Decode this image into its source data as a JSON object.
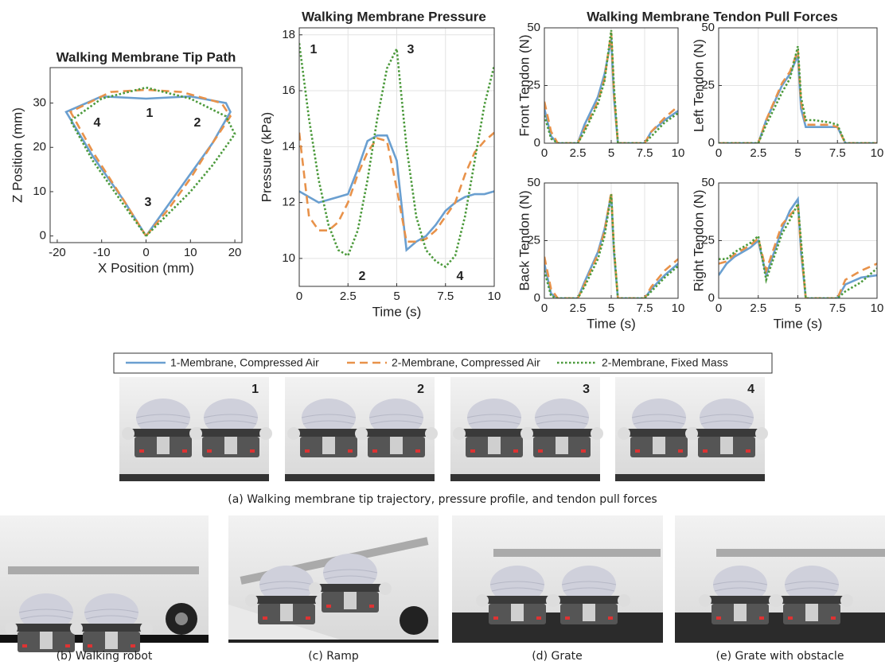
{
  "chart_data": [
    {
      "type": "line",
      "title": "Walking Membrane Tip Path",
      "xlabel": "X Position (mm)",
      "ylabel": "Z Position (mm)",
      "xlim": [
        -21.6,
        21.6
      ],
      "xticks": [
        -20,
        -10,
        0,
        10,
        20
      ],
      "ylim": [
        -1.5,
        38
      ],
      "yticks": [
        0,
        10,
        20,
        30
      ],
      "grid": false,
      "annotations": [
        "1",
        "2",
        "3",
        "4"
      ],
      "series": [
        {
          "name": "1-Membrane, Compressed Air",
          "color": "#6a9fd0",
          "style": "solid",
          "x": [
            0,
            5,
            10,
            15,
            19,
            18,
            10,
            0,
            -10,
            -18,
            -12,
            -5,
            0
          ],
          "values": [
            0,
            7,
            14,
            21,
            28,
            30,
            31.5,
            31,
            31.5,
            28,
            18,
            8,
            0
          ]
        },
        {
          "name": "2-Membrane, Compressed Air",
          "color": "#e8924a",
          "style": "dashed",
          "x": [
            0,
            5,
            10,
            15,
            19,
            17,
            8,
            0,
            -8,
            -17,
            -12,
            -5,
            0
          ],
          "values": [
            0,
            6,
            13,
            21,
            27,
            30,
            32.5,
            33,
            32.5,
            28,
            19,
            8,
            0
          ]
        },
        {
          "name": "2-Membrane, Fixed Mass",
          "color": "#4c9a3c",
          "style": "dotted",
          "x": [
            0,
            5,
            10,
            15,
            20,
            18,
            10,
            0,
            -10,
            -17,
            -12,
            -5,
            0
          ],
          "values": [
            0,
            5,
            10,
            16,
            23,
            27,
            31,
            33.5,
            31,
            26,
            17,
            7,
            0
          ]
        }
      ]
    },
    {
      "type": "line",
      "title": "Walking Membrane Pressure",
      "xlabel": "Time (s)",
      "ylabel": "Pressure (kPa)",
      "xlim": [
        0,
        10
      ],
      "xticks": [
        0,
        2.5,
        5,
        7.5,
        10
      ],
      "ylim": [
        9,
        18.25
      ],
      "yticks": [
        10,
        12,
        14,
        16,
        18
      ],
      "grid": true,
      "annotations": [
        "1",
        "2",
        "3",
        "4"
      ],
      "x": [
        0,
        0.5,
        1,
        1.5,
        2,
        2.5,
        3,
        3.5,
        4,
        4.5,
        5,
        5.5,
        6,
        6.5,
        7,
        7.5,
        8,
        8.5,
        9,
        9.5,
        10
      ],
      "series": [
        {
          "name": "1-Membrane, Compressed Air",
          "color": "#6a9fd0",
          "style": "solid",
          "values": [
            12.4,
            12.2,
            12,
            12.1,
            12.2,
            12.3,
            13.2,
            14.2,
            14.4,
            14.4,
            13.5,
            10.3,
            10.6,
            10.8,
            11.2,
            11.7,
            12,
            12.2,
            12.3,
            12.3,
            12.4
          ]
        },
        {
          "name": "2-Membrane, Compressed Air",
          "color": "#e8924a",
          "style": "dashed",
          "values": [
            14.5,
            11.5,
            11,
            11,
            11.3,
            12,
            13,
            13.8,
            14.3,
            14.2,
            12.5,
            10.6,
            10.6,
            10.7,
            11,
            11.5,
            12,
            13,
            13.8,
            14.2,
            14.5
          ]
        },
        {
          "name": "2-Membrane, Fixed Mass",
          "color": "#4c9a3c",
          "style": "dotted",
          "values": [
            17.7,
            15,
            12.8,
            11.2,
            10.3,
            10.1,
            11,
            12.8,
            15,
            16.8,
            17.5,
            14,
            11.5,
            10.3,
            9.9,
            9.7,
            10.1,
            11.5,
            13.5,
            15.5,
            16.9
          ]
        }
      ]
    },
    {
      "type": "line",
      "ylabel": "Front Tendon (N)",
      "xlim": [
        0,
        10
      ],
      "xticks": [
        0,
        2.5,
        5,
        7.5,
        10
      ],
      "ylim": [
        0,
        50
      ],
      "yticks": [
        0,
        25,
        50
      ],
      "grid": true,
      "x": [
        0,
        0.5,
        1,
        2,
        2.5,
        3,
        4,
        4.5,
        5,
        5.2,
        5.5,
        6,
        7,
        7.5,
        8,
        9,
        10
      ],
      "series": [
        {
          "name": "1-Membrane, Compressed Air",
          "color": "#6a9fd0",
          "style": "solid",
          "values": [
            15,
            3,
            0,
            0,
            0,
            8,
            20,
            30,
            45,
            20,
            0,
            0,
            0,
            0,
            5,
            10,
            14
          ]
        },
        {
          "name": "2-Membrane, Compressed Air",
          "color": "#e8924a",
          "style": "dashed",
          "values": [
            18,
            5,
            0,
            0,
            0,
            6,
            18,
            28,
            48,
            22,
            0,
            0,
            0,
            0,
            5,
            11,
            16
          ]
        },
        {
          "name": "2-Membrane, Fixed Mass",
          "color": "#4c9a3c",
          "style": "dotted",
          "values": [
            12,
            2,
            0,
            0,
            0,
            5,
            17,
            27,
            49,
            25,
            0,
            0,
            0,
            0,
            3,
            9,
            13
          ]
        }
      ]
    },
    {
      "type": "line",
      "ylabel": "Left Tendon (N)",
      "xlim": [
        0,
        10
      ],
      "xticks": [
        0,
        2.5,
        5,
        7.5,
        10
      ],
      "ylim": [
        0,
        50
      ],
      "yticks": [
        0,
        25,
        50
      ],
      "grid": true,
      "x": [
        0,
        0.5,
        1,
        2,
        2.5,
        3,
        4,
        4.5,
        5,
        5.2,
        5.5,
        6,
        7,
        7.5,
        8,
        9,
        10
      ],
      "series": [
        {
          "name": "1-Membrane, Compressed Air",
          "color": "#6a9fd0",
          "style": "solid",
          "values": [
            0,
            0,
            0,
            0,
            0,
            10,
            25,
            30,
            38,
            15,
            7,
            7,
            7,
            7,
            0,
            0,
            0
          ]
        },
        {
          "name": "2-Membrane, Compressed Air",
          "color": "#e8924a",
          "style": "dashed",
          "values": [
            0,
            0,
            0,
            0,
            0,
            10,
            26,
            31,
            40,
            18,
            8,
            8,
            8,
            7,
            0,
            0,
            0
          ]
        },
        {
          "name": "2-Membrane, Fixed Mass",
          "color": "#4c9a3c",
          "style": "dotted",
          "values": [
            0,
            0,
            0,
            0,
            0,
            8,
            22,
            28,
            42,
            20,
            10,
            10,
            9,
            8,
            0,
            0,
            0
          ]
        }
      ]
    },
    {
      "type": "line",
      "ylabel": "Back Tendon (N)",
      "xlabel": "Time (s)",
      "xlim": [
        0,
        10
      ],
      "xticks": [
        0,
        2.5,
        5,
        7.5,
        10
      ],
      "ylim": [
        0,
        50
      ],
      "yticks": [
        0,
        25,
        50
      ],
      "grid": true,
      "x": [
        0,
        0.5,
        1,
        2,
        2.5,
        3,
        4,
        4.5,
        5,
        5.2,
        5.5,
        6,
        7,
        7.5,
        8,
        9,
        10
      ],
      "series": [
        {
          "name": "1-Membrane, Compressed Air",
          "color": "#6a9fd0",
          "style": "solid",
          "values": [
            15,
            2,
            0,
            0,
            0,
            7,
            20,
            30,
            45,
            20,
            0,
            0,
            0,
            0,
            4,
            10,
            15
          ]
        },
        {
          "name": "2-Membrane, Compressed Air",
          "color": "#e8924a",
          "style": "dashed",
          "values": [
            18,
            4,
            0,
            0,
            0,
            6,
            19,
            29,
            46,
            22,
            0,
            0,
            0,
            0,
            5,
            12,
            17
          ]
        },
        {
          "name": "2-Membrane, Fixed Mass",
          "color": "#4c9a3c",
          "style": "dotted",
          "values": [
            12,
            1,
            0,
            0,
            0,
            5,
            17,
            27,
            45,
            22,
            0,
            0,
            0,
            0,
            3,
            9,
            14
          ]
        }
      ]
    },
    {
      "type": "line",
      "ylabel": "Right Tendon (N)",
      "xlabel": "Time (s)",
      "xlim": [
        0,
        10
      ],
      "xticks": [
        0,
        2.5,
        5,
        7.5,
        10
      ],
      "ylim": [
        0,
        50
      ],
      "yticks": [
        0,
        25,
        50
      ],
      "grid": true,
      "x": [
        0,
        0.5,
        1,
        2,
        2.5,
        3,
        4,
        4.5,
        5,
        5.2,
        5.5,
        6,
        7,
        7.5,
        8,
        9,
        10
      ],
      "series": [
        {
          "name": "1-Membrane, Compressed Air",
          "color": "#6a9fd0",
          "style": "solid",
          "values": [
            10,
            15,
            18,
            22,
            25,
            10,
            30,
            38,
            43,
            20,
            0,
            0,
            0,
            0,
            6,
            9,
            10
          ]
        },
        {
          "name": "2-Membrane, Compressed Air",
          "color": "#e8924a",
          "style": "dashed",
          "values": [
            15,
            16,
            19,
            23,
            26,
            12,
            32,
            36,
            40,
            22,
            0,
            0,
            0,
            0,
            8,
            12,
            15
          ]
        },
        {
          "name": "2-Membrane, Fixed Mass",
          "color": "#4c9a3c",
          "style": "dotted",
          "values": [
            17,
            17,
            20,
            24,
            27,
            8,
            28,
            34,
            41,
            25,
            0,
            0,
            0,
            0,
            3,
            7,
            13
          ]
        }
      ]
    }
  ],
  "tendon_title": "Walking Membrane Tendon Pull Forces",
  "photo_labels": [
    "1",
    "2",
    "3",
    "4"
  ],
  "captions": [
    "(a) Walking membrane tip trajectory, pressure profile, and tendon pull forces",
    "(b) Walking robot",
    "(c) Ramp",
    "(d) Grate",
    "(e) Grate with obstacle"
  ]
}
